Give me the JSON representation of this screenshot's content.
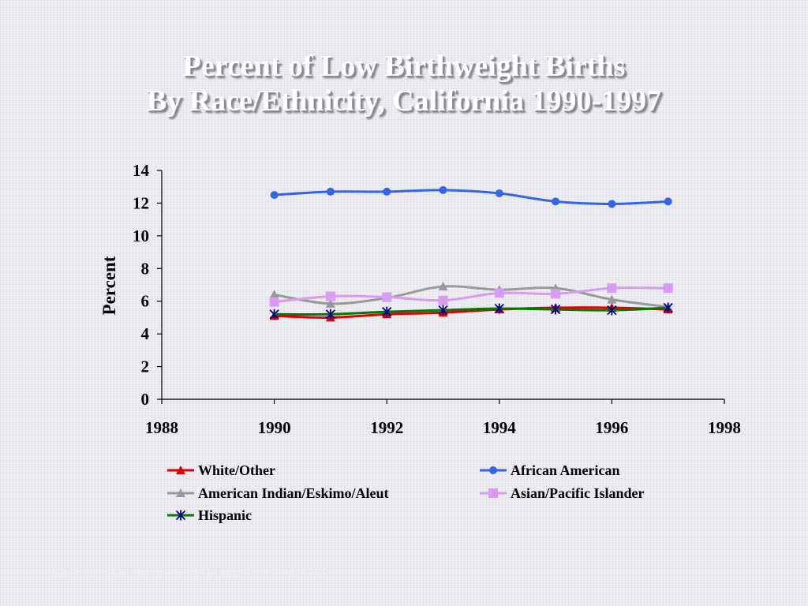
{
  "title": {
    "line1": "Percent of Low Birthweight Births",
    "line2": "By Race/Ethnicity, California 1990-1997"
  },
  "footer": "California Department of Health Services 1999",
  "chart_data": {
    "type": "line",
    "title": "Percent of Low Birthweight Births By Race/Ethnicity, California 1990-1997",
    "xlabel": "",
    "ylabel": "Percent",
    "xlim": [
      1988,
      1998
    ],
    "ylim": [
      0,
      14
    ],
    "xticks": [
      1988,
      1990,
      1992,
      1994,
      1996,
      1998
    ],
    "yticks": [
      0,
      2,
      4,
      6,
      8,
      10,
      12,
      14
    ],
    "grid": false,
    "legend_position": "bottom",
    "x": [
      1990,
      1991,
      1992,
      1993,
      1994,
      1995,
      1996,
      1997
    ],
    "series": [
      {
        "name": "White/Other",
        "color": "#e00000",
        "marker": "triangle",
        "values": [
          5.1,
          5.0,
          5.2,
          5.3,
          5.5,
          5.6,
          5.6,
          5.5
        ]
      },
      {
        "name": "African American",
        "color": "#3366e6",
        "marker": "circle",
        "values": [
          12.5,
          12.7,
          12.7,
          12.8,
          12.6,
          12.1,
          11.95,
          12.1
        ]
      },
      {
        "name": "American Indian/Eskimo/Aleut",
        "color": "#999999",
        "marker": "triangle",
        "values": [
          6.4,
          5.85,
          6.2,
          6.9,
          6.7,
          6.8,
          6.1,
          5.65
        ]
      },
      {
        "name": "Asian/Pacific Islander",
        "color": "#d79bf2",
        "marker": "square",
        "values": [
          5.95,
          6.3,
          6.25,
          6.05,
          6.5,
          6.45,
          6.8,
          6.8
        ]
      },
      {
        "name": "Hispanic",
        "color": "#007a00",
        "marker": "star",
        "markerColor": "#00008b",
        "values": [
          5.2,
          5.2,
          5.35,
          5.45,
          5.55,
          5.5,
          5.45,
          5.6
        ]
      }
    ]
  }
}
